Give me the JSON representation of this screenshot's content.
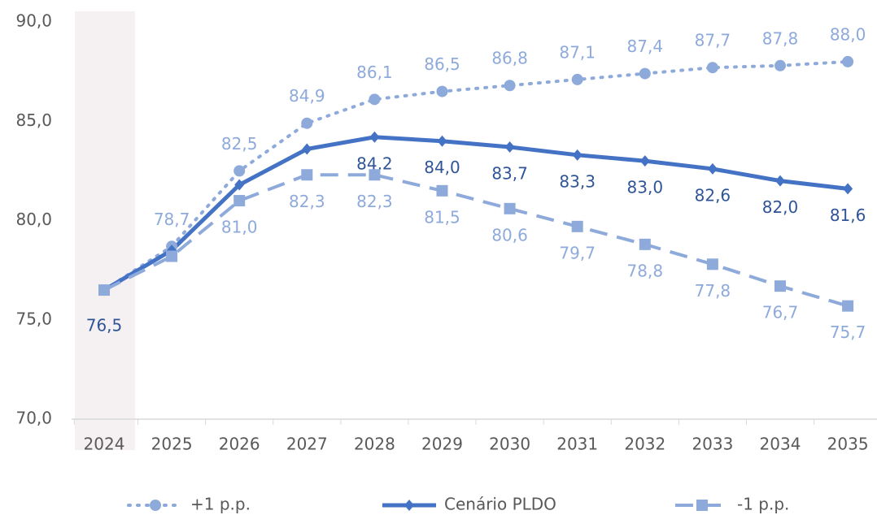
{
  "chart_data": {
    "type": "line",
    "categories": [
      "2024",
      "2025",
      "2026",
      "2027",
      "2028",
      "2029",
      "2030",
      "2031",
      "2032",
      "2033",
      "2034",
      "2035"
    ],
    "series": [
      {
        "name": "+1 p.p.",
        "color": "#8eaadb",
        "line_style": "dotted",
        "marker": "circle",
        "label_position": "above",
        "values": [
          76.5,
          78.7,
          82.5,
          84.9,
          86.1,
          86.5,
          86.8,
          87.1,
          87.4,
          87.7,
          87.8,
          88.0
        ],
        "value_labels": [
          null,
          "78,7",
          "82,5",
          "84,9",
          "86,1",
          "86,5",
          "86,8",
          "87,1",
          "87,4",
          "87,7",
          "87,8",
          "88,0"
        ]
      },
      {
        "name": "Cenário PLDO",
        "color": "#4472c4",
        "line_style": "solid",
        "marker": "diamond",
        "label_position": "below",
        "label_color": "#2f5597",
        "values": [
          76.5,
          78.5,
          81.8,
          83.6,
          84.2,
          84.0,
          83.7,
          83.3,
          83.0,
          82.6,
          82.0,
          81.6
        ],
        "value_labels": [
          "76,5",
          null,
          null,
          null,
          "84,2",
          "84,0",
          "83,7",
          "83,3",
          "83,0",
          "82,6",
          "82,0",
          "81,6"
        ]
      },
      {
        "name": "-1 p.p.",
        "color": "#8eaadb",
        "line_style": "dashed",
        "marker": "square",
        "label_position": "below",
        "values": [
          76.5,
          78.2,
          81.0,
          82.3,
          82.3,
          81.5,
          80.6,
          79.7,
          78.8,
          77.8,
          76.7,
          75.7
        ],
        "value_labels": [
          null,
          null,
          "81,0",
          "82,3",
          "82,3",
          "81,5",
          "80,6",
          "79,7",
          "78,8",
          "77,8",
          "76,7",
          "75,7"
        ]
      }
    ],
    "ylim": [
      70,
      90
    ],
    "yticks": [
      {
        "value": 70,
        "label": "70,0"
      },
      {
        "value": 75,
        "label": "75,0"
      },
      {
        "value": 80,
        "label": "80,0"
      },
      {
        "value": 85,
        "label": "85,0"
      },
      {
        "value": 90,
        "label": "90,0"
      }
    ],
    "legend": "bottom"
  }
}
